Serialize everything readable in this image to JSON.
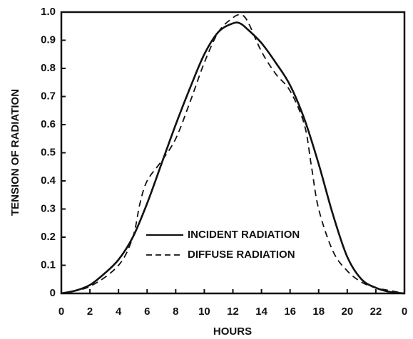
{
  "chart_data": {
    "type": "line",
    "xlabel": "HOURS",
    "ylabel": "TENSION OF RADIATION",
    "xlim": [
      0,
      24
    ],
    "xticks": [
      0,
      2,
      4,
      6,
      8,
      10,
      12,
      14,
      16,
      18,
      20,
      22,
      {
        "value": 24,
        "label": "0"
      }
    ],
    "ylim": [
      0,
      1
    ],
    "yticks": [
      0,
      0.1,
      0.2,
      0.3,
      0.4,
      0.5,
      0.6,
      0.7,
      0.8,
      0.9,
      {
        "value": 1,
        "label": "1.0"
      }
    ],
    "legend": "lower center",
    "series": [
      {
        "name": "INCIDENT RADIATION",
        "color": "#111111",
        "style": "solid",
        "x": [
          0,
          1,
          2,
          3,
          4,
          5,
          6,
          7,
          8,
          9,
          10,
          11,
          12,
          12.5,
          13,
          14,
          15,
          16,
          17,
          18,
          19,
          20,
          21,
          22,
          23,
          24
        ],
        "values": [
          0,
          0.01,
          0.03,
          0.07,
          0.12,
          0.2,
          0.32,
          0.46,
          0.6,
          0.73,
          0.85,
          0.93,
          0.96,
          0.96,
          0.94,
          0.89,
          0.82,
          0.74,
          0.62,
          0.46,
          0.28,
          0.13,
          0.05,
          0.02,
          0.005,
          0
        ]
      },
      {
        "name": "DIFFUSE RADIATION",
        "color": "#111111",
        "style": "dashed",
        "x": [
          0,
          2,
          4,
          5,
          5.5,
          6,
          7,
          8,
          9,
          10,
          11,
          12,
          12.5,
          13,
          14,
          15,
          16,
          17,
          17.5,
          18,
          19,
          20,
          21,
          22,
          23,
          24
        ],
        "values": [
          0,
          0.025,
          0.1,
          0.2,
          0.32,
          0.4,
          0.47,
          0.55,
          0.68,
          0.82,
          0.93,
          0.98,
          0.99,
          0.97,
          0.86,
          0.78,
          0.72,
          0.6,
          0.45,
          0.3,
          0.15,
          0.08,
          0.04,
          0.02,
          0.01,
          0
        ]
      }
    ]
  }
}
